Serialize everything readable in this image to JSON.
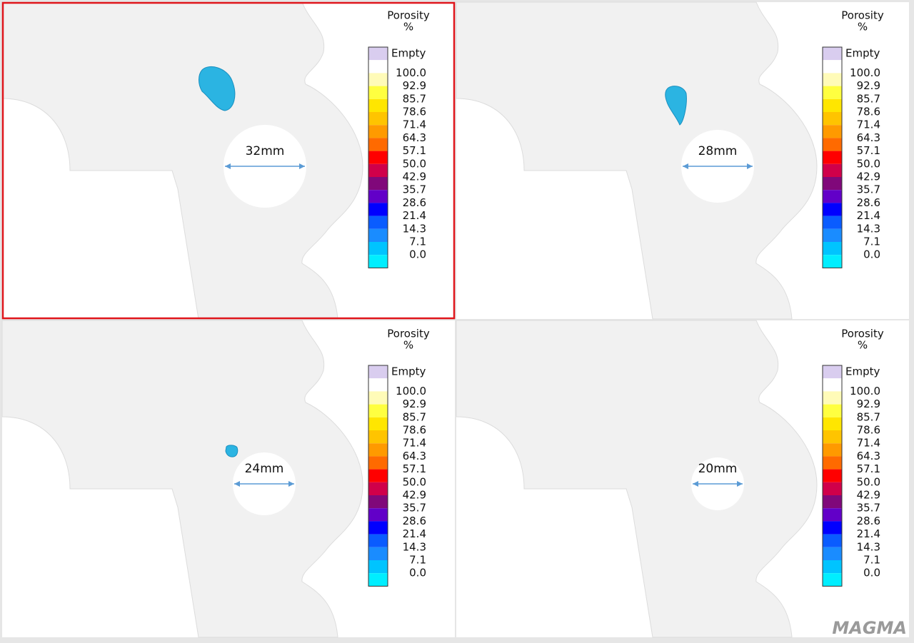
{
  "panels": [
    {
      "dimension": "32mm",
      "selected": true
    },
    {
      "dimension": "28mm",
      "selected": false
    },
    {
      "dimension": "24mm",
      "selected": false
    },
    {
      "dimension": "20mm",
      "selected": false
    }
  ],
  "legend": {
    "title": "Porosity",
    "unit": "%",
    "entries": [
      {
        "label": "Empty",
        "color": "#d9cdef"
      },
      {
        "label": "100.0",
        "color": "#ffffff"
      },
      {
        "label": "92.9",
        "color": "#fffbb8"
      },
      {
        "label": "85.7",
        "color": "#ffff40"
      },
      {
        "label": "78.6",
        "color": "#ffe600"
      },
      {
        "label": "71.4",
        "color": "#ffc400"
      },
      {
        "label": "64.3",
        "color": "#ff9a00"
      },
      {
        "label": "57.1",
        "color": "#ff6a00"
      },
      {
        "label": "50.0",
        "color": "#ff0000"
      },
      {
        "label": "42.9",
        "color": "#d0004a"
      },
      {
        "label": "35.7",
        "color": "#80087a"
      },
      {
        "label": "28.6",
        "color": "#6200c8"
      },
      {
        "label": "21.4",
        "color": "#0000ff"
      },
      {
        "label": "14.3",
        "color": "#0a5cff"
      },
      {
        "label": "7.1",
        "color": "#1a8cff"
      },
      {
        "label": "0.0",
        "color": "#00c4ff"
      },
      {
        "label": "",
        "color": "#00eeff"
      }
    ]
  },
  "logo": "MAGMA"
}
